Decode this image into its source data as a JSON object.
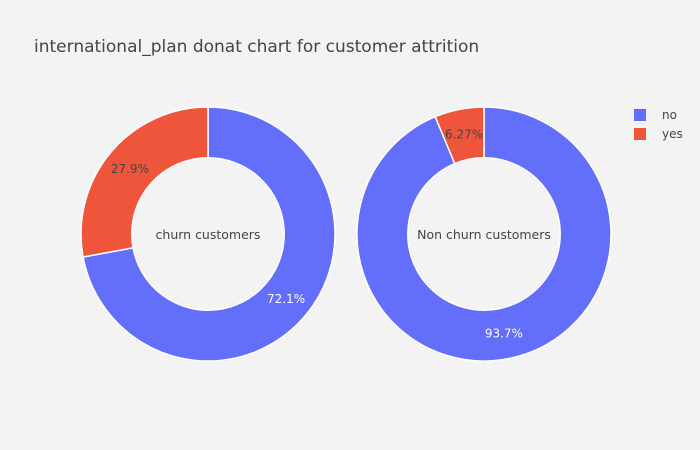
{
  "colors": {
    "no": "#636efa",
    "yes": "#ef553b",
    "background": "#f3f3f3",
    "text": "#444444"
  },
  "chart_data": {
    "type": "pie",
    "title": "international_plan donat chart for customer attrition",
    "hole": 0.6,
    "legend": {
      "position": "top-right",
      "entries": [
        "no",
        "yes"
      ]
    },
    "charts": [
      {
        "center_label": "churn customers",
        "slices": [
          {
            "name": "no",
            "value": 72.1,
            "label": "72.1%"
          },
          {
            "name": "yes",
            "value": 27.9,
            "label": "27.9%"
          }
        ]
      },
      {
        "center_label": "Non churn customers",
        "slices": [
          {
            "name": "no",
            "value": 93.7,
            "label": "93.7%"
          },
          {
            "name": "yes",
            "value": 6.27,
            "label": "6.27%"
          }
        ]
      }
    ]
  }
}
